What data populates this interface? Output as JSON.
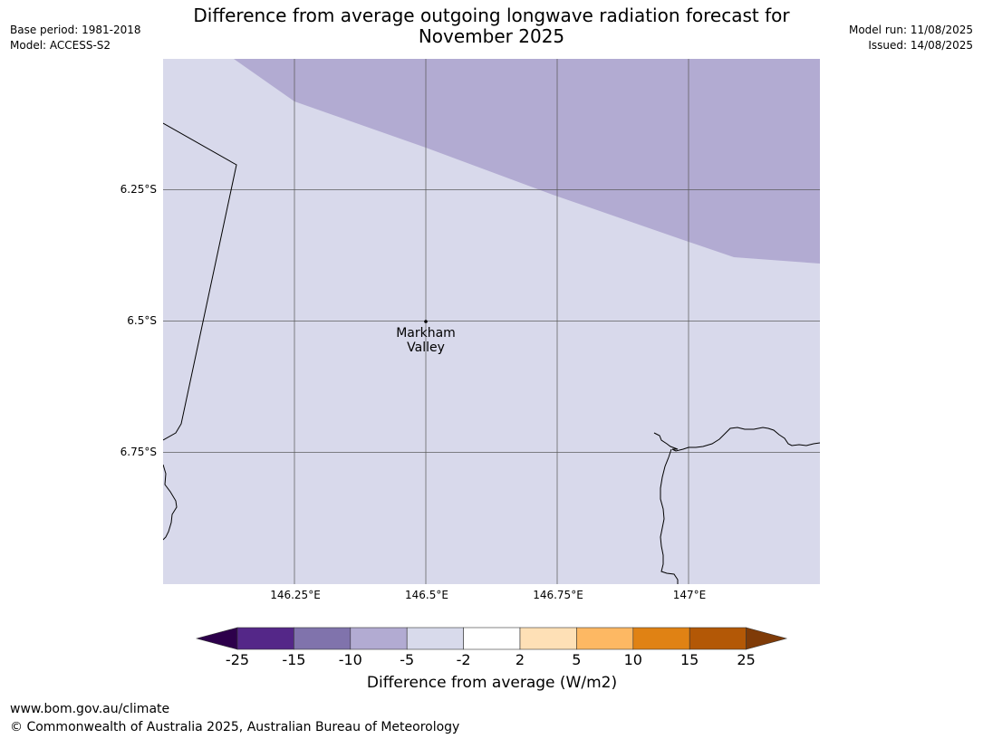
{
  "title": {
    "line1": "Difference from average outgoing longwave radiation forecast for",
    "line2": "November 2025"
  },
  "meta_left": {
    "base_period": "Base period: 1981-2018",
    "model": "Model: ACCESS-S2"
  },
  "meta_right": {
    "model_run": "Model run: 11/08/2025",
    "issued": "Issued: 14/08/2025"
  },
  "map": {
    "lat_labels": [
      "6.25°S",
      "6.5°S",
      "6.75°S"
    ],
    "lon_labels": [
      "146.25°E",
      "146.5°E",
      "146.75°E",
      "147°E"
    ],
    "place": {
      "line1": "Markham",
      "line2": "Valley"
    },
    "fill_colors": {
      "band_-5_-2": "#d8d9eb",
      "band_-10_-5": "#b2abd2"
    }
  },
  "colorbar": {
    "ticks": [
      "-25",
      "-15",
      "-10",
      "-5",
      "-2",
      "2",
      "5",
      "10",
      "15",
      "25"
    ],
    "colors": [
      "#2d004b",
      "#542788",
      "#8073ac",
      "#b2abd2",
      "#d8daeb",
      "#ffffff",
      "#fee0b6",
      "#fdb863",
      "#e08214",
      "#b35806",
      "#7f3b08"
    ],
    "label": "Difference from average (W/m2)"
  },
  "footer": {
    "url": "www.bom.gov.au/climate",
    "copyright": "© Commonwealth of Australia 2025, Australian Bureau of Meteorology"
  }
}
